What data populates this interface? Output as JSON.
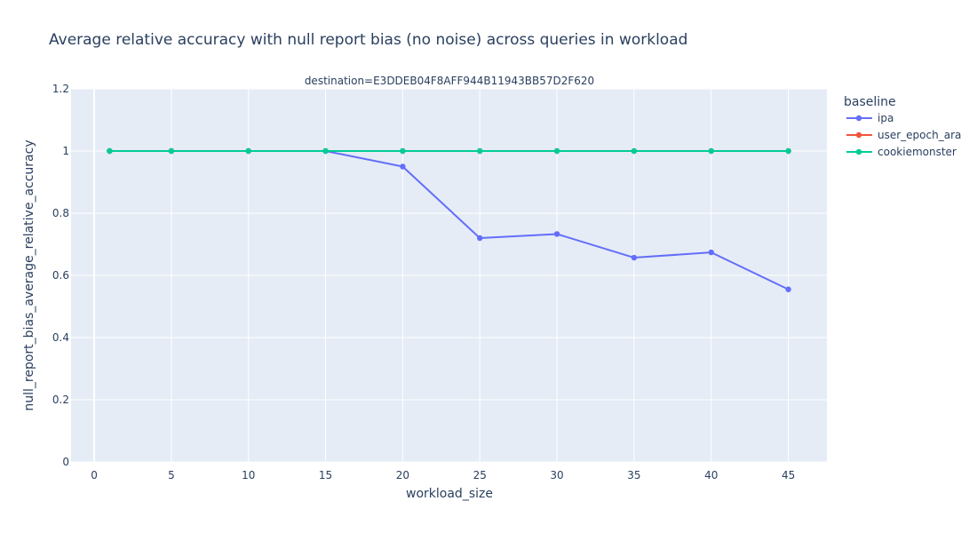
{
  "chart_data": {
    "type": "line",
    "title": "Average relative accuracy with null report bias (no noise) across queries in workload",
    "subplot_title": "destination=E3DDEB04F8AFF944B11943BB57D2F620",
    "xlabel": "workload_size",
    "ylabel": "null_report_bias_average_relative_accuracy",
    "xlim": [
      -1.5,
      47.5
    ],
    "ylim": [
      0,
      1.2
    ],
    "x_ticks": [
      0,
      5,
      10,
      15,
      20,
      25,
      30,
      35,
      40,
      45
    ],
    "y_ticks": [
      0,
      0.2,
      0.4,
      0.6,
      0.8,
      1,
      1.2
    ],
    "grid": true,
    "plot_background": "#e5ecf6",
    "grid_color": "#ffffff",
    "legend": {
      "title": "baseline",
      "placement": "right"
    },
    "x": [
      1,
      5,
      10,
      15,
      20,
      25,
      30,
      35,
      40,
      45
    ],
    "series": [
      {
        "name": "ipa",
        "color": "#636efa",
        "values": [
          1,
          1,
          1,
          1,
          0.95,
          0.72,
          0.733,
          0.657,
          0.674,
          0.555
        ]
      },
      {
        "name": "user_epoch_ara",
        "color": "#ef553b",
        "values": [
          1,
          1,
          1,
          1,
          1,
          1,
          1,
          1,
          1,
          1
        ]
      },
      {
        "name": "cookiemonster",
        "color": "#00cc96",
        "values": [
          1,
          1,
          1,
          1,
          1,
          1,
          1,
          1,
          1,
          1
        ]
      }
    ]
  }
}
